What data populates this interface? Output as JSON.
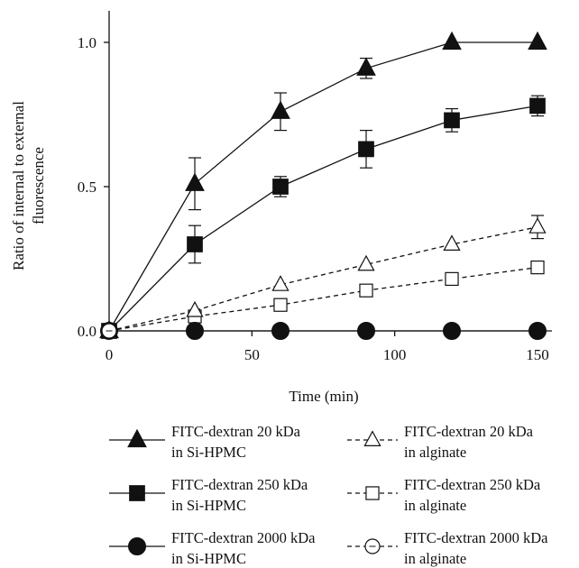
{
  "chart_data": {
    "type": "line",
    "title": "",
    "xlabel": "Time (min)",
    "ylabel_line1": "Ratio of internal to external",
    "ylabel_line2": "fluorescence",
    "xlim": [
      0,
      160
    ],
    "ylim": [
      0,
      1.1
    ],
    "xticks": [
      0,
      50,
      100,
      150
    ],
    "xtick_labels": [
      "0",
      "50",
      "100",
      "150"
    ],
    "yticks": [
      0,
      0.5,
      1.0
    ],
    "ytick_labels": [
      "0.0",
      "0.5",
      "1.0"
    ],
    "grid": false,
    "legend_position": "bottom",
    "series": [
      {
        "name_line1": "FITC-dextran 20 kDa",
        "name_line2": "in Si-HPMC",
        "marker": "triangle",
        "filled": true,
        "dashed": false,
        "x": [
          0,
          30,
          60,
          90,
          120,
          150
        ],
        "y": [
          0,
          0.51,
          0.76,
          0.91,
          1.0,
          1.0
        ],
        "err": [
          0,
          0.09,
          0.065,
          0.035,
          0,
          0
        ]
      },
      {
        "name_line1": "FITC-dextran 250 kDa",
        "name_line2": "in Si-HPMC",
        "marker": "square",
        "filled": true,
        "dashed": false,
        "x": [
          0,
          30,
          60,
          90,
          120,
          150
        ],
        "y": [
          0,
          0.3,
          0.5,
          0.63,
          0.73,
          0.78
        ],
        "err": [
          0,
          0.065,
          0.035,
          0.065,
          0.04,
          0.035
        ]
      },
      {
        "name_line1": "FITC-dextran 2000 kDa",
        "name_line2": "in Si-HPMC",
        "marker": "circle",
        "filled": true,
        "dashed": false,
        "x": [
          0,
          30,
          60,
          90,
          120,
          150
        ],
        "y": [
          0,
          0,
          0,
          0,
          0,
          0
        ],
        "err": [
          0,
          0,
          0,
          0,
          0,
          0
        ]
      },
      {
        "name_line1": "FITC-dextran 20 kDa",
        "name_line2": "in alginate",
        "marker": "triangle",
        "filled": false,
        "dashed": true,
        "x": [
          0,
          30,
          60,
          90,
          120,
          150
        ],
        "y": [
          0,
          0.07,
          0.16,
          0.23,
          0.3,
          0.36
        ],
        "err": [
          0,
          0,
          0,
          0,
          0,
          0.04
        ]
      },
      {
        "name_line1": "FITC-dextran 250 kDa",
        "name_line2": "in alginate",
        "marker": "square",
        "filled": false,
        "dashed": true,
        "x": [
          0,
          30,
          60,
          90,
          120,
          150
        ],
        "y": [
          0,
          0.05,
          0.09,
          0.14,
          0.18,
          0.22
        ],
        "err": [
          0,
          0,
          0,
          0,
          0,
          0
        ]
      },
      {
        "name_line1": "FITC-dextran 2000 kDa",
        "name_line2": "in alginate",
        "marker": "circle",
        "filled": false,
        "dashed": true,
        "x": [
          0
        ],
        "y": [
          0
        ],
        "err": [
          0
        ]
      }
    ]
  }
}
